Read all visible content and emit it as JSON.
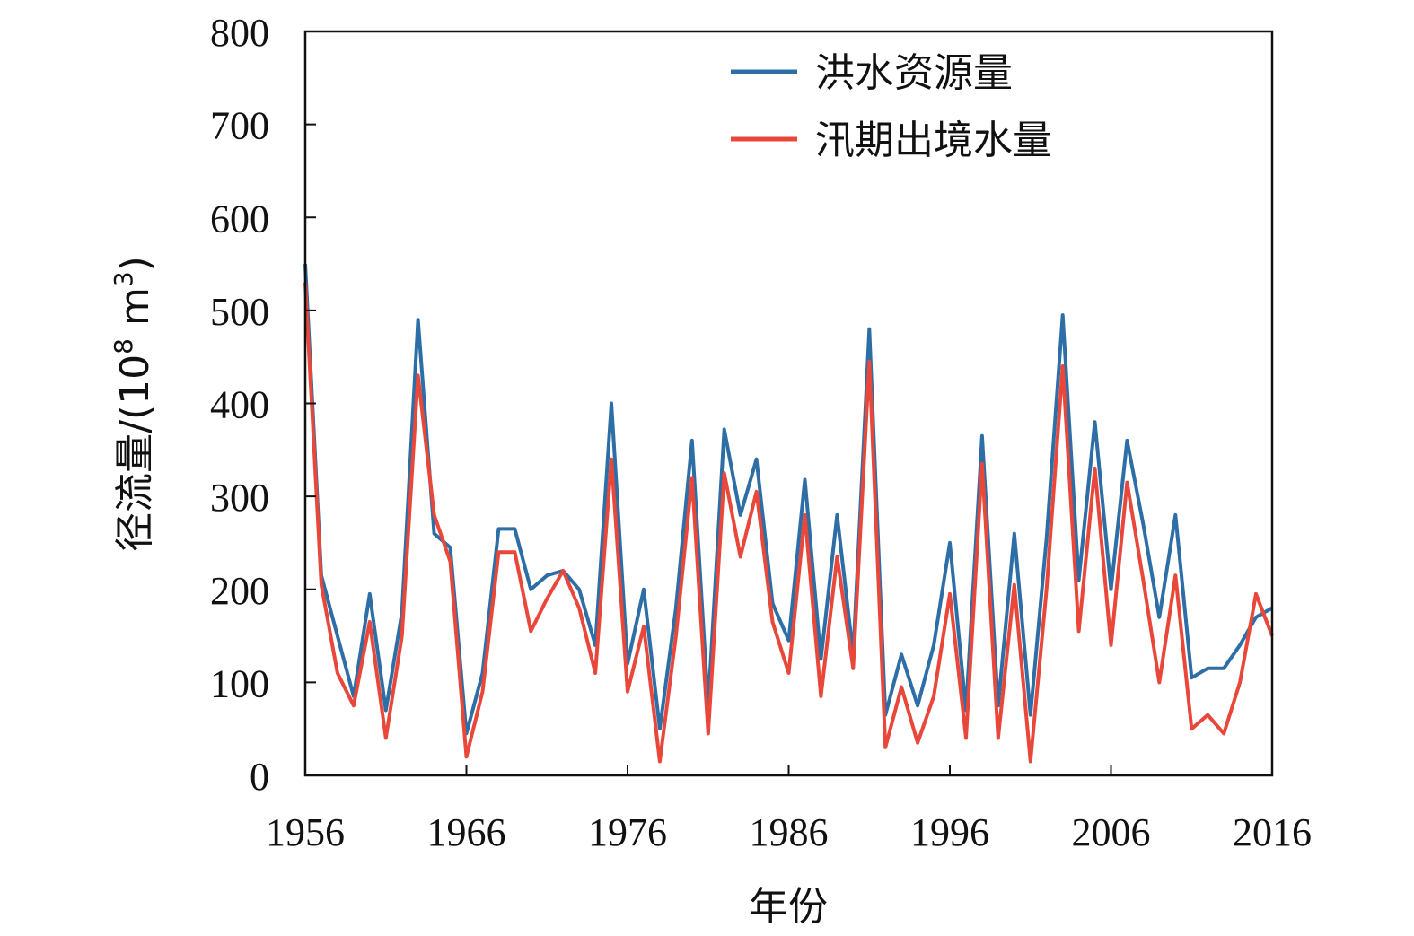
{
  "chart_data": {
    "type": "line",
    "title": "",
    "xlabel": "年份",
    "ylabel_main": "径流量/(10",
    "ylabel_exp1": "8",
    "ylabel_mid": " m",
    "ylabel_exp2": "3",
    "ylabel_end": ")",
    "xlim": [
      1956,
      2016
    ],
    "ylim": [
      0,
      800
    ],
    "x_ticks": [
      1956,
      1966,
      1976,
      1986,
      1996,
      2006,
      2016
    ],
    "y_ticks": [
      0,
      100,
      200,
      300,
      400,
      500,
      600,
      700,
      800
    ],
    "legend_position": "top-right",
    "x": [
      1956,
      1957,
      1958,
      1959,
      1960,
      1961,
      1962,
      1963,
      1964,
      1965,
      1966,
      1967,
      1968,
      1969,
      1970,
      1971,
      1972,
      1973,
      1974,
      1975,
      1976,
      1977,
      1978,
      1979,
      1980,
      1981,
      1982,
      1983,
      1984,
      1985,
      1986,
      1987,
      1988,
      1989,
      1990,
      1991,
      1992,
      1993,
      1994,
      1995,
      1996,
      1997,
      1998,
      1999,
      2000,
      2001,
      2002,
      2003,
      2004,
      2005,
      2006,
      2007,
      2008,
      2009,
      2010,
      2011,
      2012,
      2013,
      2014,
      2015,
      2016
    ],
    "series": [
      {
        "name": "洪水资源量",
        "color": "#2e6ea6",
        "values": [
          550,
          215,
          150,
          85,
          195,
          70,
          175,
          490,
          260,
          245,
          45,
          110,
          265,
          265,
          200,
          215,
          220,
          200,
          140,
          400,
          120,
          200,
          50,
          180,
          360,
          75,
          372,
          280,
          340,
          185,
          145,
          318,
          125,
          280,
          130,
          480,
          65,
          130,
          75,
          140,
          250,
          70,
          365,
          75,
          260,
          65,
          255,
          495,
          210,
          380,
          200,
          360,
          270,
          170,
          280,
          105,
          115,
          115,
          140,
          170,
          180
        ],
        "legend_y": 80
      },
      {
        "name": "汛期出境水量",
        "color": "#e8473a",
        "values": [
          530,
          205,
          110,
          75,
          165,
          40,
          150,
          430,
          280,
          230,
          20,
          90,
          240,
          240,
          155,
          190,
          220,
          180,
          110,
          340,
          90,
          160,
          15,
          150,
          320,
          45,
          325,
          235,
          305,
          165,
          110,
          280,
          85,
          235,
          115,
          445,
          30,
          95,
          35,
          85,
          195,
          40,
          335,
          40,
          205,
          15,
          200,
          440,
          155,
          330,
          140,
          315,
          210,
          100,
          215,
          50,
          65,
          45,
          100,
          195,
          150
        ],
        "legend_y": 155
      }
    ]
  }
}
